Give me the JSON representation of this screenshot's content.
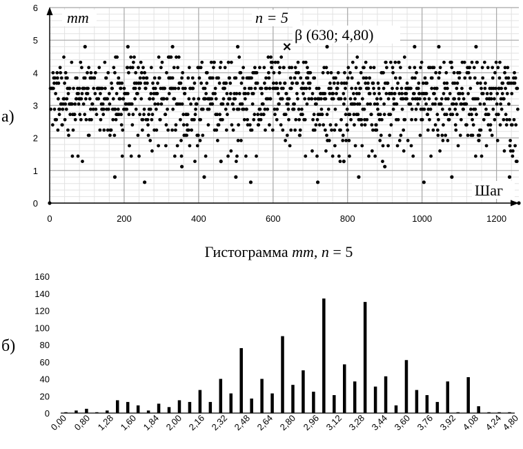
{
  "figure": {
    "panel_a_label": "а)",
    "panel_b_label": "б)"
  },
  "chart_data": [
    {
      "type": "scatter",
      "panel": "а)",
      "ylabel": "mm",
      "xlabel": "Шаг",
      "annotation_n": "n = 5",
      "highlight": {
        "label": "β (630; 4,80)",
        "x": 630,
        "y": 4.8,
        "marker": "cross"
      },
      "xlim": [
        0,
        1260
      ],
      "ylim": [
        0,
        6
      ],
      "xticks": [
        0,
        200,
        400,
        600,
        800,
        1000,
        1200
      ],
      "yticks": [
        0,
        1,
        2,
        3,
        4,
        5,
        6
      ],
      "grid": true,
      "n_points": 1260,
      "y_levels": [
        0.64,
        0.8,
        1.12,
        1.28,
        1.44,
        1.6,
        1.76,
        1.92,
        2.08,
        2.24,
        2.4,
        2.56,
        2.72,
        2.88,
        3.04,
        3.2,
        3.36,
        3.52,
        3.68,
        3.84,
        4.0,
        4.16,
        4.32,
        4.48,
        4.8
      ],
      "level_weights": [
        1,
        1,
        1,
        1,
        3,
        2,
        3,
        4,
        5,
        8,
        10,
        13,
        12,
        16,
        16,
        20,
        18,
        20,
        14,
        13,
        10,
        9,
        7,
        5,
        1
      ],
      "explicit_points": [
        [
          0,
          0
        ],
        [
          1260,
          0
        ],
        [
          630,
          4.8
        ],
        [
          95,
          4.8
        ],
        [
          210,
          4.8
        ],
        [
          330,
          4.8
        ],
        [
          505,
          4.8
        ],
        [
          745,
          4.8
        ],
        [
          980,
          4.8
        ],
        [
          1045,
          4.8
        ],
        [
          1145,
          4.8
        ],
        [
          175,
          0.8
        ],
        [
          255,
          0.64
        ],
        [
          415,
          0.8
        ],
        [
          500,
          0.8
        ],
        [
          540,
          0.64
        ],
        [
          720,
          0.64
        ],
        [
          830,
          0.8
        ],
        [
          1005,
          0.64
        ],
        [
          1080,
          0.8
        ],
        [
          355,
          1.12
        ],
        [
          460,
          1.28
        ],
        [
          790,
          1.28
        ],
        [
          900,
          1.12
        ],
        [
          1235,
          0.8
        ]
      ]
    },
    {
      "type": "bar",
      "panel": "б)",
      "title": "Гистограмма mm, n = 5",
      "title_parts": {
        "prefix": "Гистограмма ",
        "var": "mm",
        "mid": ", ",
        "n": "n",
        "suffix": " = 5"
      },
      "ylim": [
        0,
        160
      ],
      "yticks": [
        0,
        20,
        40,
        60,
        80,
        100,
        120,
        140,
        160
      ],
      "xtick_labels": [
        "0,00",
        "0,80",
        "1,28",
        "1,60",
        "1,84",
        "2,00",
        "2,16",
        "2,32",
        "2,48",
        "2,64",
        "2,80",
        "2,96",
        "3,12",
        "3,28",
        "3,44",
        "3,60",
        "3,76",
        "3,92",
        "4,08",
        "4,24",
        "4,80"
      ],
      "categories": [
        "0,00",
        "0,64",
        "0,80",
        "0,96",
        "1,28",
        "1,44",
        "1,60",
        "1,68",
        "1,76",
        "1,84",
        "1,92",
        "2,00",
        "2,08",
        "2,16",
        "2,24",
        "2,32",
        "2,40",
        "2,48",
        "2,56",
        "2,64",
        "2,72",
        "2,80",
        "2,88",
        "2,96",
        "3,04",
        "3,12",
        "3,20",
        "3,28",
        "3,36",
        "3,44",
        "3,52",
        "3,60",
        "3,68",
        "3,76",
        "3,84",
        "3,92",
        "4,00",
        "4,08",
        "4,16",
        "4,24",
        "4,32",
        "4,40",
        "4,48",
        "4,80"
      ],
      "values": [
        1,
        3,
        5,
        1,
        3,
        15,
        13,
        9,
        3,
        11,
        7,
        15,
        13,
        27,
        13,
        40,
        23,
        76,
        17,
        40,
        23,
        90,
        33,
        50,
        25,
        134,
        21,
        57,
        37,
        130,
        31,
        43,
        9,
        62,
        27,
        21,
        13,
        37,
        1,
        42,
        8,
        1,
        1,
        1
      ],
      "grid": false
    }
  ]
}
